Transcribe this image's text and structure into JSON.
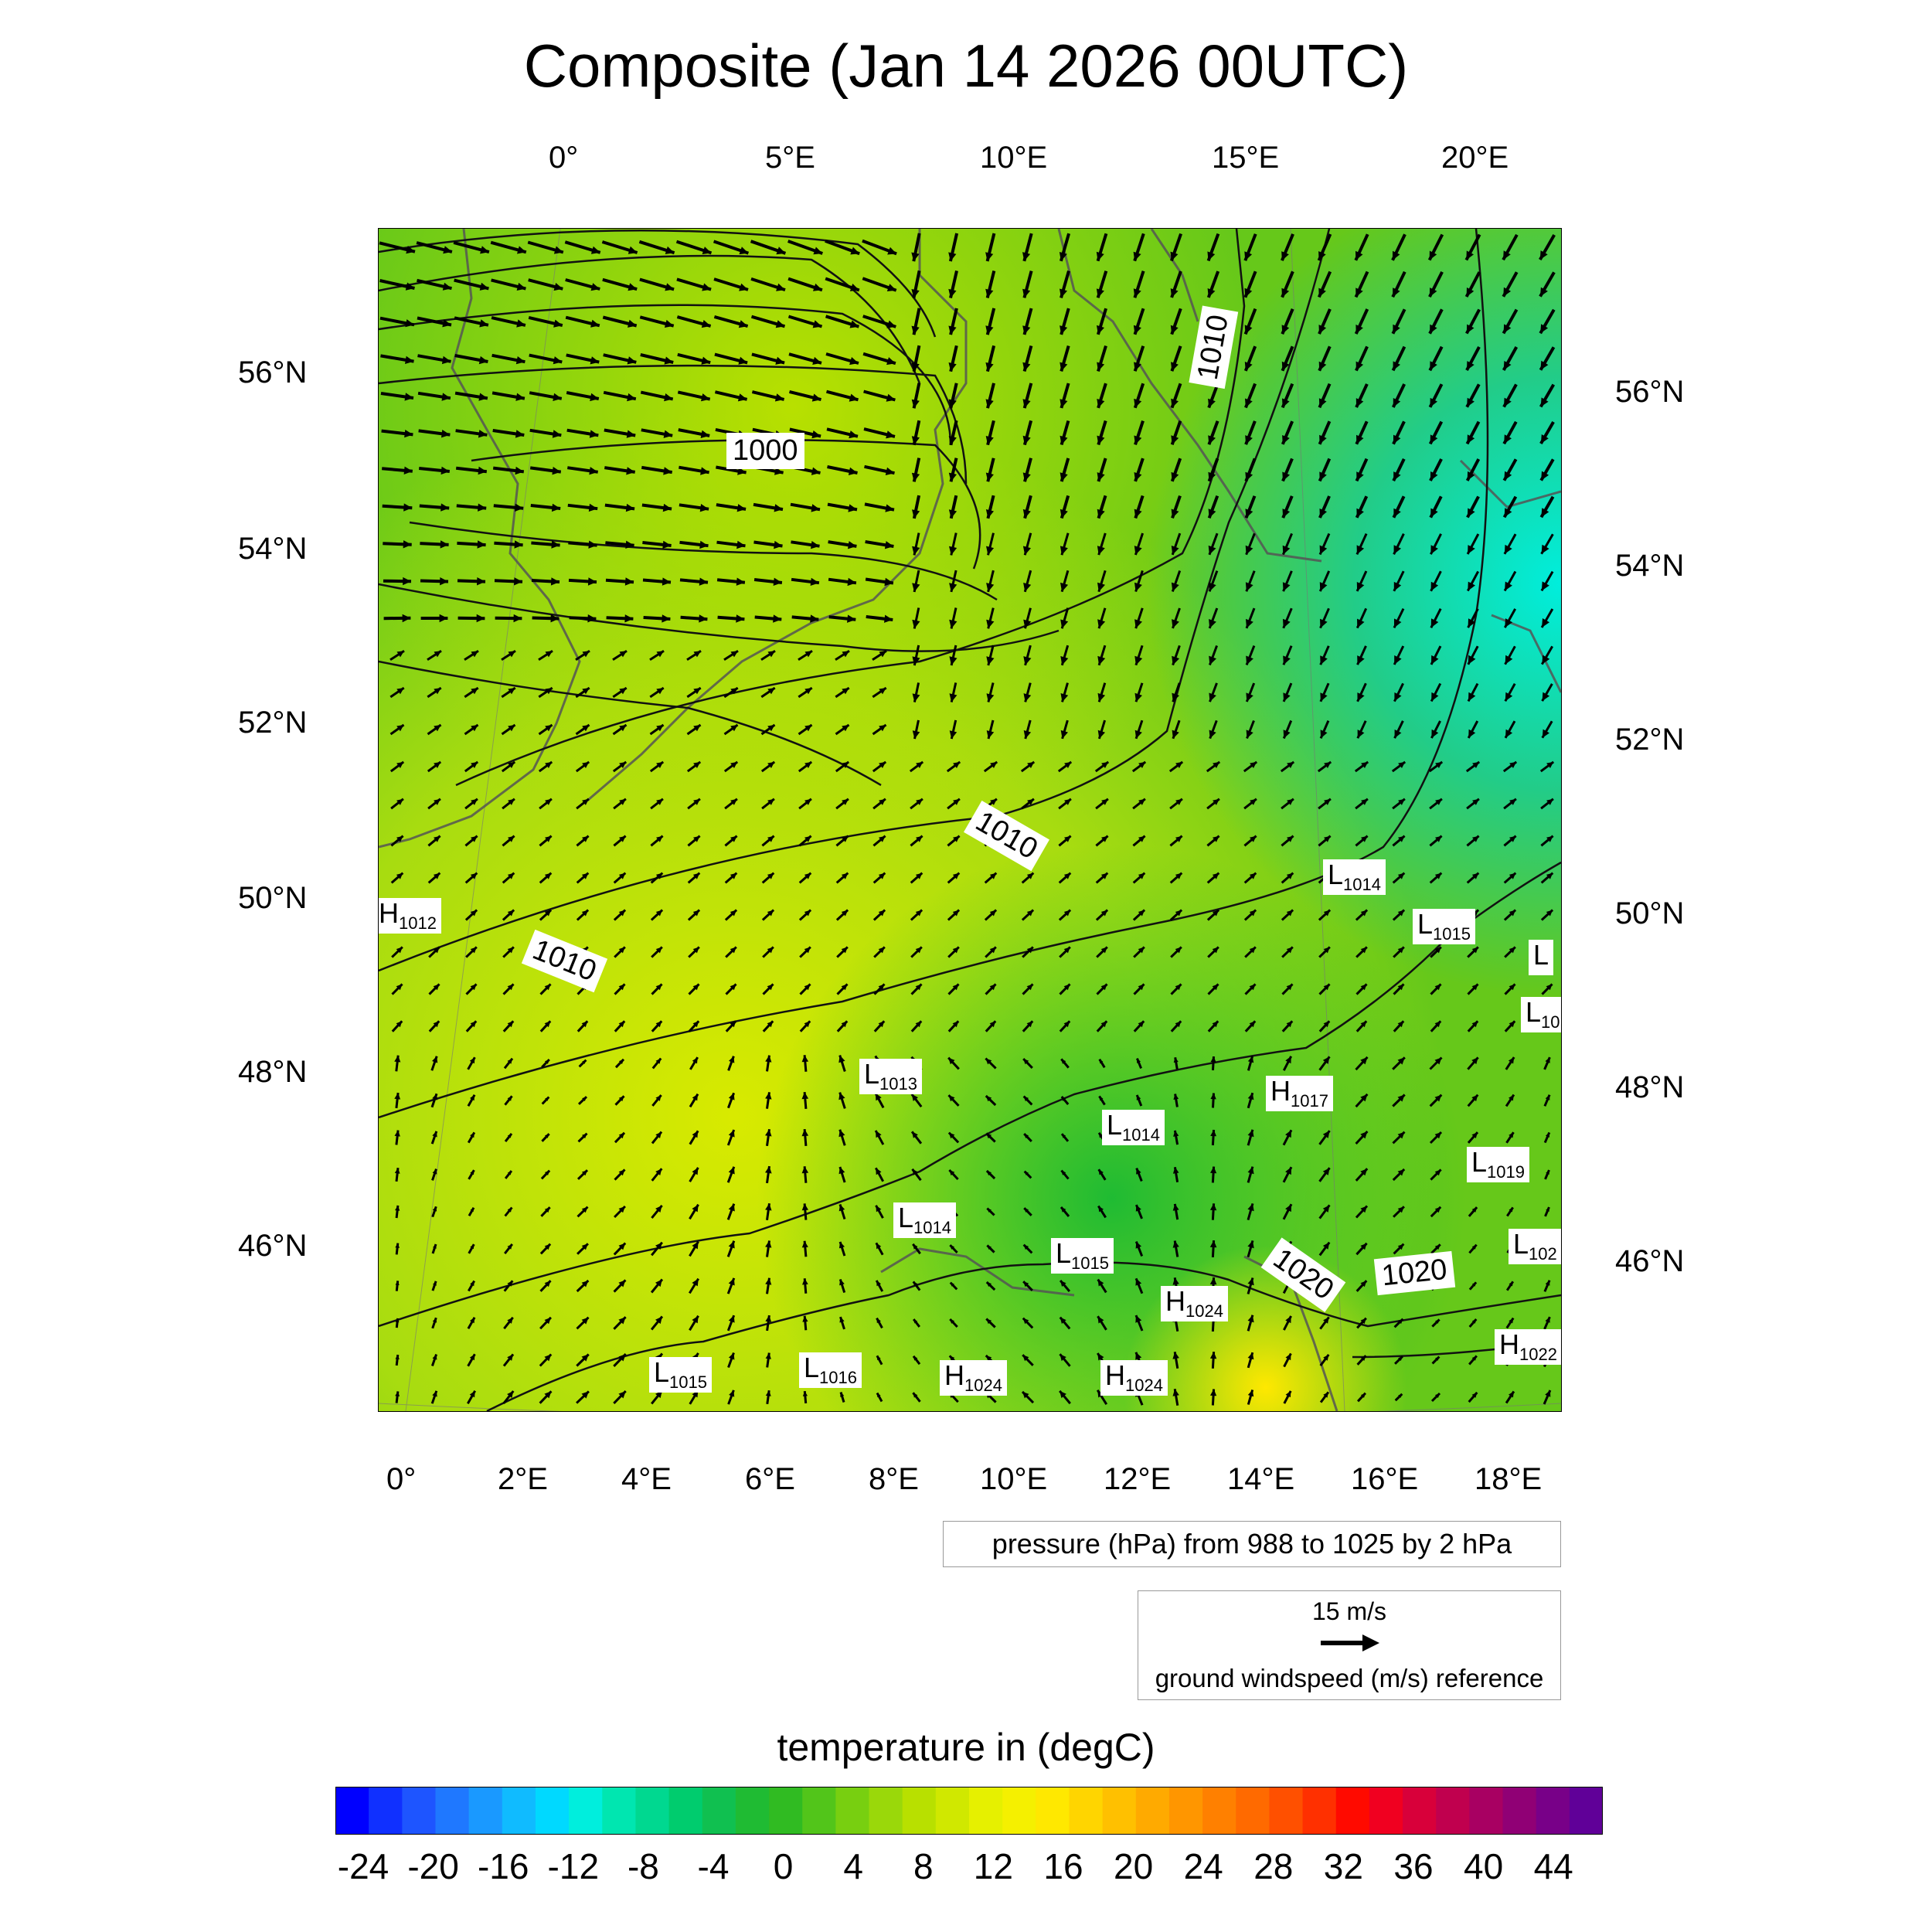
{
  "title": "Composite (Jan 14 2026 00UTC)",
  "map": {
    "top_lon_labels": [
      "0°",
      "5°E",
      "10°E",
      "15°E",
      "20°E"
    ],
    "bottom_lon_labels": [
      "0°",
      "2°E",
      "4°E",
      "6°E",
      "8°E",
      "10°E",
      "12°E",
      "14°E",
      "16°E",
      "18°E"
    ],
    "left_lat_labels": [
      "56°N",
      "54°N",
      "52°N",
      "50°N",
      "48°N",
      "46°N"
    ],
    "right_lat_labels": [
      "56°N",
      "54°N",
      "52°N",
      "50°N",
      "48°N",
      "46°N"
    ],
    "isobar_labels": [
      "1000",
      "1010",
      "1010",
      "1010",
      "1020",
      "1020"
    ],
    "pressure_centers": [
      {
        "type": "H",
        "value": "1012"
      },
      {
        "type": "L",
        "value": "1014"
      },
      {
        "type": "L",
        "value": "1015"
      },
      {
        "type": "L",
        "value": ""
      },
      {
        "type": "L",
        "value": "10"
      },
      {
        "type": "L",
        "value": "1013"
      },
      {
        "type": "H",
        "value": "1017"
      },
      {
        "type": "L",
        "value": "1014"
      },
      {
        "type": "L",
        "value": "1019"
      },
      {
        "type": "L",
        "value": "1014"
      },
      {
        "type": "L",
        "value": "1015"
      },
      {
        "type": "H",
        "value": "1024"
      },
      {
        "type": "L",
        "value": "102"
      },
      {
        "type": "H",
        "value": "1022"
      },
      {
        "type": "L",
        "value": "1015"
      },
      {
        "type": "L",
        "value": "1016"
      },
      {
        "type": "H",
        "value": "1024"
      },
      {
        "type": "H",
        "value": "1024"
      }
    ],
    "colors": {
      "land_warm": "#c8e600",
      "land_cool": "#33bb33",
      "cold_region": "#00e6cc",
      "coast": "#555555",
      "isobar": "#111111",
      "arrow": "#000000"
    }
  },
  "pressure_note": "pressure (hPa) from 988 to 1025 by 2 hPa",
  "wind_reference": {
    "value": "15 m/s",
    "caption": "ground windspeed (m/s) reference"
  },
  "colorbar": {
    "title": "temperature in (degC)",
    "labels": [
      "-24",
      "-20",
      "-16",
      "-12",
      "-8",
      "-4",
      "0",
      "4",
      "8",
      "12",
      "16",
      "20",
      "24",
      "28",
      "32",
      "36",
      "40",
      "44"
    ],
    "colors": [
      "#0000ff",
      "#1030ff",
      "#1e55ff",
      "#1f78ff",
      "#1a99ff",
      "#10bbff",
      "#00d9ff",
      "#00eedd",
      "#00e6b0",
      "#00d890",
      "#00cc6e",
      "#10c050",
      "#1fbb33",
      "#30bb22",
      "#52c51a",
      "#78cf10",
      "#9ad80a",
      "#b8e000",
      "#d0e800",
      "#e6f000",
      "#f5f000",
      "#ffe800",
      "#ffd500",
      "#ffc000",
      "#ffaa00",
      "#ff9600",
      "#ff8000",
      "#ff6a00",
      "#ff5000",
      "#ff3000",
      "#ff0a00",
      "#f00020",
      "#d8003a",
      "#c0004e",
      "#a80062",
      "#900075",
      "#780088",
      "#600098"
    ]
  }
}
